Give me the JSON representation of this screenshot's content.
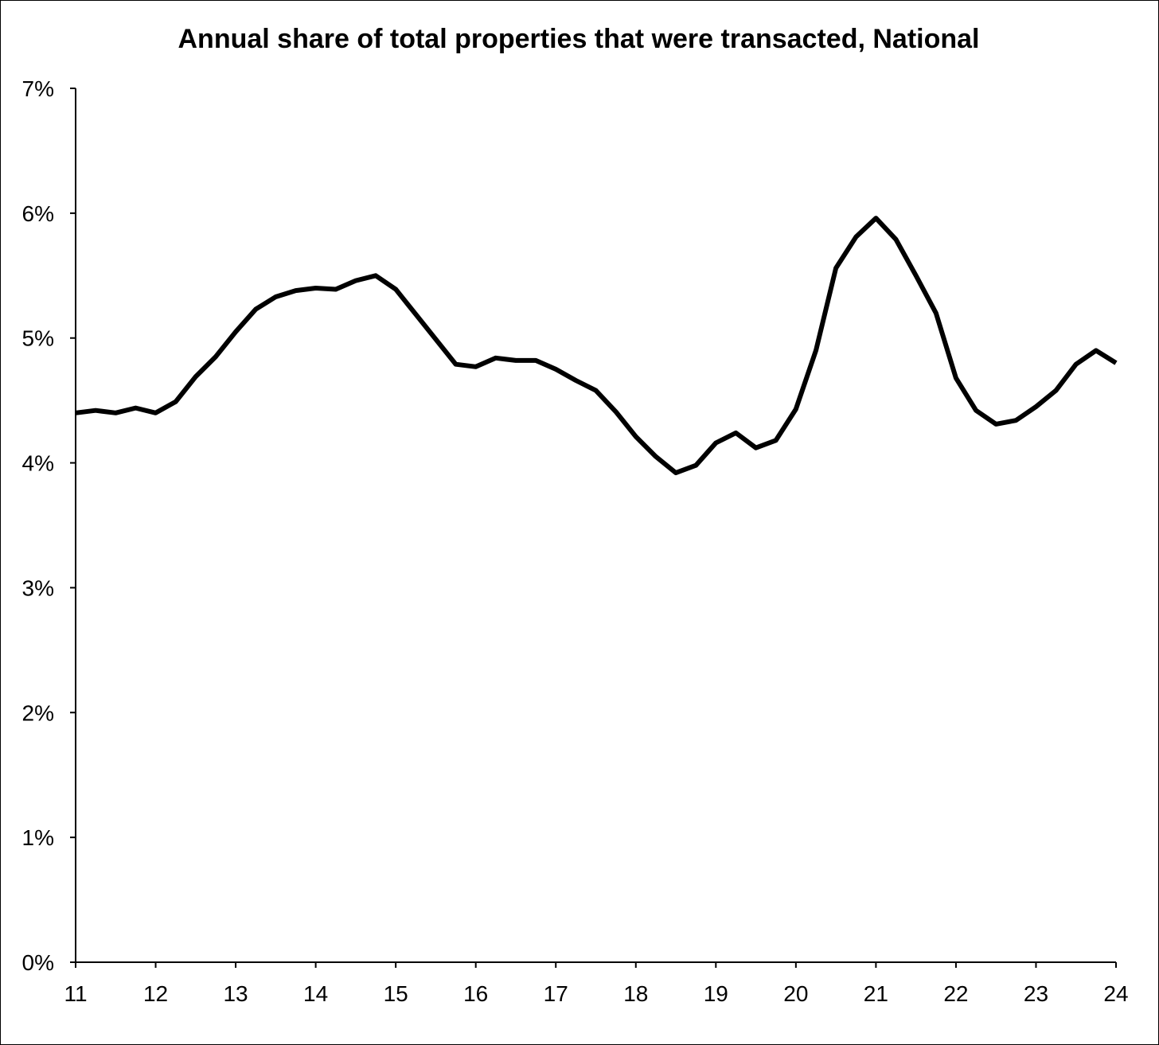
{
  "chart_data": {
    "type": "line",
    "title": "Annual share of total properties that were transacted, National",
    "xlabel": "",
    "ylabel": "",
    "xlim": [
      11,
      24
    ],
    "ylim": [
      0,
      7
    ],
    "x_ticks": [
      11,
      12,
      13,
      14,
      15,
      16,
      17,
      18,
      19,
      20,
      21,
      22,
      23,
      24
    ],
    "x_tick_labels": [
      "11",
      "12",
      "13",
      "14",
      "15",
      "16",
      "17",
      "18",
      "19",
      "20",
      "21",
      "22",
      "23",
      "24"
    ],
    "y_ticks": [
      0,
      1,
      2,
      3,
      4,
      5,
      6,
      7
    ],
    "y_tick_labels": [
      "0%",
      "1%",
      "2%",
      "3%",
      "4%",
      "5%",
      "6%",
      "7%"
    ],
    "grid": false,
    "legend": "none",
    "line_color": "#000000",
    "series": [
      {
        "name": "National",
        "x": [
          11.0,
          11.25,
          11.5,
          11.75,
          12.0,
          12.25,
          12.5,
          12.75,
          13.0,
          13.25,
          13.5,
          13.75,
          14.0,
          14.25,
          14.5,
          14.75,
          15.0,
          15.25,
          15.5,
          15.75,
          16.0,
          16.25,
          16.5,
          16.75,
          17.0,
          17.25,
          17.5,
          17.75,
          18.0,
          18.25,
          18.5,
          18.75,
          19.0,
          19.25,
          19.5,
          19.75,
          20.0,
          20.25,
          20.5,
          20.75,
          21.0,
          21.25,
          21.5,
          21.75,
          22.0,
          22.25,
          22.5,
          22.75,
          23.0,
          23.25,
          23.5,
          23.75,
          24.0
        ],
        "values": [
          4.4,
          4.42,
          4.4,
          4.44,
          4.4,
          4.49,
          4.69,
          4.85,
          5.05,
          5.23,
          5.33,
          5.38,
          5.4,
          5.39,
          5.46,
          5.5,
          5.39,
          5.19,
          4.99,
          4.79,
          4.77,
          4.84,
          4.82,
          4.82,
          4.75,
          4.66,
          4.58,
          4.41,
          4.21,
          4.05,
          3.92,
          3.98,
          4.16,
          4.24,
          4.12,
          4.18,
          4.43,
          4.9,
          5.56,
          5.81,
          5.96,
          5.79,
          5.5,
          5.2,
          4.68,
          4.42,
          4.31,
          4.34,
          4.45,
          4.58,
          4.79,
          4.9,
          4.8
        ]
      }
    ]
  }
}
